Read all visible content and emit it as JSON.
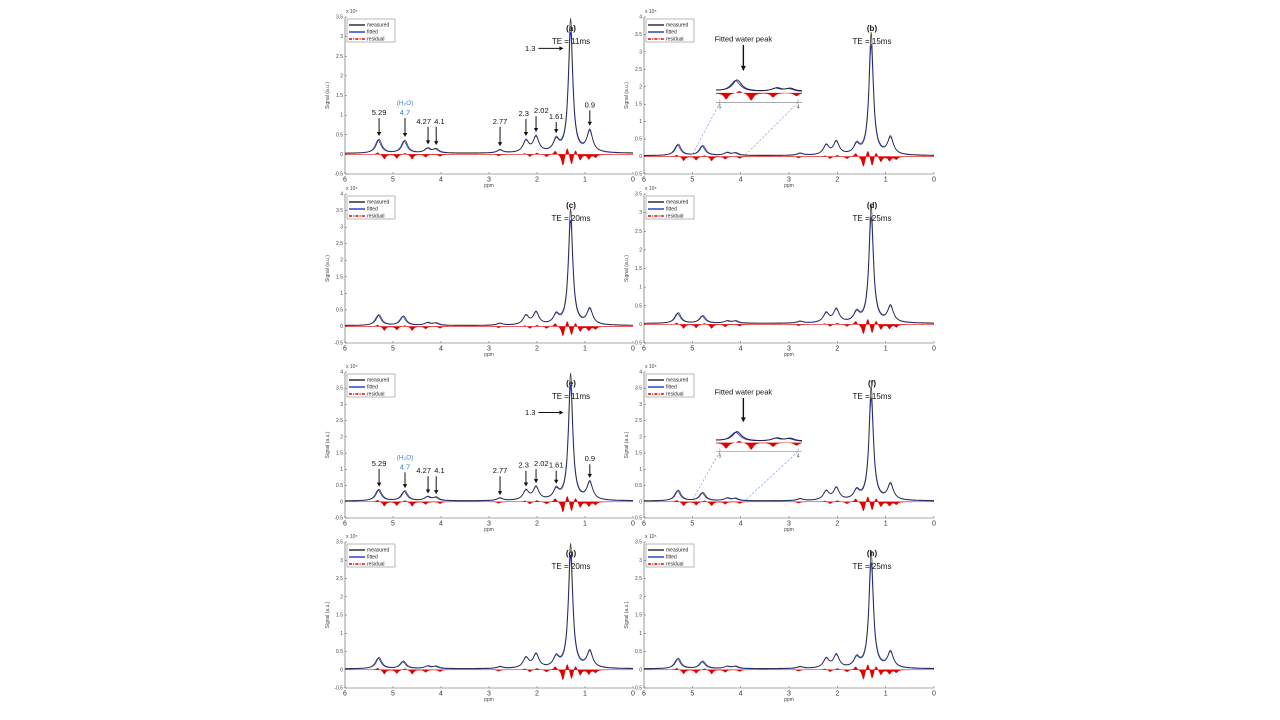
{
  "chart_data": {
    "type": "line",
    "xlabel": "ppm",
    "ylabel": "Signal (a.u.)",
    "y_exponent": "x 10⁵",
    "xlim": [
      6,
      0
    ],
    "x_ticks": [
      "6",
      "5",
      "4",
      "3",
      "2",
      "1",
      "0"
    ],
    "legend": {
      "placement": "top-left",
      "entries": [
        "measured",
        "fitted",
        "residual"
      ]
    },
    "colors": {
      "measured": "#222222",
      "fitted": "#2233cc",
      "residual": "#e00000",
      "annotation_water": "#3a7fd5",
      "inset_guide": "#7799dd"
    },
    "residual_peaks": [
      [
        5.32,
        0.05
      ],
      [
        5.18,
        -0.12
      ],
      [
        4.92,
        -0.1
      ],
      [
        4.75,
        0.04
      ],
      [
        4.6,
        -0.12
      ],
      [
        4.32,
        -0.07
      ],
      [
        4.02,
        -0.05
      ],
      [
        2.8,
        -0.04
      ],
      [
        2.25,
        0.03
      ],
      [
        2.15,
        -0.06
      ],
      [
        2.0,
        0.04
      ],
      [
        1.8,
        -0.06
      ],
      [
        1.62,
        0.1
      ],
      [
        1.46,
        -0.3
      ],
      [
        1.37,
        0.22
      ],
      [
        1.28,
        -0.28
      ],
      [
        1.2,
        0.15
      ],
      [
        1.1,
        -0.15
      ],
      [
        0.92,
        -0.12
      ],
      [
        0.78,
        -0.08
      ]
    ],
    "panels": [
      {
        "id": "(a)",
        "te": "TE = 11ms",
        "ylim": [
          -0.5,
          3.5
        ],
        "y_ticks": [
          "-0.5",
          "0",
          "0.5",
          "1",
          "1.5",
          "2",
          "2.5",
          "3",
          "3.5"
        ],
        "peaks": [
          [
            5.29,
            0.35
          ],
          [
            4.75,
            0.32
          ],
          [
            4.27,
            0.12
          ],
          [
            4.1,
            0.1
          ],
          [
            2.77,
            0.08
          ],
          [
            2.23,
            0.3
          ],
          [
            2.02,
            0.4
          ],
          [
            1.6,
            0.3
          ],
          [
            1.3,
            3.4
          ],
          [
            0.9,
            0.55
          ]
        ],
        "annotations": [
          {
            "text": "5.29",
            "ppm": 5.29,
            "label_y": 1.0
          },
          {
            "text": "4.7",
            "ppm": 4.75,
            "label_y": 1.0,
            "sup": "(H₂O)",
            "blue": true
          },
          {
            "text": "4.27",
            "ppm": 4.27,
            "label_y": 0.78
          },
          {
            "text": "4.1",
            "ppm": 4.1,
            "label_y": 0.78
          },
          {
            "text": "2.77",
            "ppm": 2.77,
            "label_y": 0.78
          },
          {
            "text": "2.3",
            "ppm": 2.23,
            "label_y": 0.98
          },
          {
            "text": "2.02",
            "ppm": 2.02,
            "label_y": 1.05
          },
          {
            "text": "1.61",
            "ppm": 1.6,
            "label_y": 0.9
          },
          {
            "text": "0.9",
            "ppm": 0.9,
            "label_y": 1.2
          }
        ],
        "arrow_label": {
          "text": "1.3",
          "ppm": 1.45,
          "y": 2.7
        }
      },
      {
        "id": "(b)",
        "te": "TE = 15ms",
        "ylim": [
          -0.5,
          4
        ],
        "y_ticks": [
          "-0.5",
          "0",
          "0.5",
          "1",
          "1.5",
          "2",
          "2.5",
          "3",
          "3.5",
          "4"
        ],
        "peaks": [
          [
            5.29,
            0.32
          ],
          [
            4.78,
            0.28
          ],
          [
            4.27,
            0.08
          ],
          [
            4.1,
            0.07
          ],
          [
            2.77,
            0.06
          ],
          [
            2.23,
            0.28
          ],
          [
            2.02,
            0.38
          ],
          [
            1.6,
            0.28
          ],
          [
            1.3,
            3.5
          ],
          [
            0.9,
            0.5
          ]
        ],
        "inset": {
          "title": "Fitted water peak",
          "range": [
            5,
            4
          ]
        }
      },
      {
        "id": "(c)",
        "te": "TE = 20ms",
        "ylim": [
          -0.5,
          4
        ],
        "y_ticks": [
          "-0.5",
          "0",
          "0.5",
          "1",
          "1.5",
          "2",
          "2.5",
          "3",
          "3.5",
          "4"
        ],
        "peaks": [
          [
            5.29,
            0.32
          ],
          [
            4.78,
            0.28
          ],
          [
            4.27,
            0.08
          ],
          [
            4.1,
            0.07
          ],
          [
            2.77,
            0.06
          ],
          [
            2.23,
            0.28
          ],
          [
            2.02,
            0.38
          ],
          [
            1.6,
            0.28
          ],
          [
            1.3,
            3.5
          ],
          [
            0.9,
            0.48
          ]
        ]
      },
      {
        "id": "(d)",
        "te": "TE = 25ms",
        "ylim": [
          -0.5,
          3.5
        ],
        "y_ticks": [
          "-0.5",
          "0",
          "0.5",
          "1",
          "1.5",
          "2",
          "2.5",
          "3",
          "3.5"
        ],
        "peaks": [
          [
            5.29,
            0.28
          ],
          [
            4.78,
            0.2
          ],
          [
            4.27,
            0.06
          ],
          [
            4.1,
            0.06
          ],
          [
            2.77,
            0.05
          ],
          [
            2.23,
            0.26
          ],
          [
            2.02,
            0.36
          ],
          [
            1.6,
            0.26
          ],
          [
            1.3,
            3.15
          ],
          [
            0.9,
            0.44
          ]
        ]
      },
      {
        "id": "(e)",
        "te": "TE = 11ms",
        "ylim": [
          -0.5,
          4
        ],
        "y_ticks": [
          "-0.5",
          "0",
          "0.5",
          "1",
          "1.5",
          "2",
          "2.5",
          "3",
          "3.5",
          "4"
        ],
        "peaks": [
          [
            5.29,
            0.35
          ],
          [
            4.75,
            0.3
          ],
          [
            4.27,
            0.12
          ],
          [
            4.1,
            0.1
          ],
          [
            2.77,
            0.08
          ],
          [
            2.23,
            0.3
          ],
          [
            2.02,
            0.4
          ],
          [
            1.6,
            0.3
          ],
          [
            1.3,
            3.9
          ],
          [
            0.9,
            0.55
          ]
        ],
        "annotations": [
          {
            "text": "5.29",
            "ppm": 5.29,
            "label_y": 1.1
          },
          {
            "text": "4.7",
            "ppm": 4.75,
            "label_y": 1.0,
            "sup": "(H₂O)",
            "blue": true
          },
          {
            "text": "4.27",
            "ppm": 4.27,
            "label_y": 0.88
          },
          {
            "text": "4.1",
            "ppm": 4.1,
            "label_y": 0.88
          },
          {
            "text": "2.77",
            "ppm": 2.77,
            "label_y": 0.88
          },
          {
            "text": "2.3",
            "ppm": 2.23,
            "label_y": 1.05
          },
          {
            "text": "2.02",
            "ppm": 2.02,
            "label_y": 1.1
          },
          {
            "text": "1.61",
            "ppm": 1.6,
            "label_y": 1.05
          },
          {
            "text": "0.9",
            "ppm": 0.9,
            "label_y": 1.25
          }
        ],
        "arrow_label": {
          "text": "1.3",
          "ppm": 1.45,
          "y": 2.75
        }
      },
      {
        "id": "(f)",
        "te": "TE = 15ms",
        "ylim": [
          -0.5,
          4
        ],
        "y_ticks": [
          "-0.5",
          "0",
          "0.5",
          "1",
          "1.5",
          "2",
          "2.5",
          "3",
          "3.5",
          "4"
        ],
        "peaks": [
          [
            5.29,
            0.32
          ],
          [
            4.78,
            0.25
          ],
          [
            4.27,
            0.08
          ],
          [
            4.1,
            0.07
          ],
          [
            2.77,
            0.06
          ],
          [
            2.23,
            0.28
          ],
          [
            2.02,
            0.38
          ],
          [
            1.6,
            0.28
          ],
          [
            1.3,
            3.5
          ],
          [
            0.9,
            0.5
          ]
        ],
        "inset": {
          "title": "Fitted water peak",
          "range": [
            5,
            4
          ]
        }
      },
      {
        "id": "(g)",
        "te": "TE = 20ms",
        "ylim": [
          -0.5,
          3.5
        ],
        "y_ticks": [
          "-0.5",
          "0",
          "0.5",
          "1",
          "1.5",
          "2",
          "2.5",
          "3",
          "3.5"
        ],
        "peaks": [
          [
            5.29,
            0.3
          ],
          [
            4.78,
            0.2
          ],
          [
            4.27,
            0.07
          ],
          [
            4.1,
            0.06
          ],
          [
            2.77,
            0.05
          ],
          [
            2.23,
            0.28
          ],
          [
            2.02,
            0.38
          ],
          [
            1.6,
            0.28
          ],
          [
            1.3,
            3.4
          ],
          [
            0.9,
            0.46
          ]
        ]
      },
      {
        "id": "(h)",
        "te": "TE = 25ms",
        "ylim": [
          -0.5,
          3.5
        ],
        "y_ticks": [
          "-0.5",
          "0",
          "0.5",
          "1",
          "1.5",
          "2",
          "2.5",
          "3",
          "3.5"
        ],
        "peaks": [
          [
            5.29,
            0.28
          ],
          [
            4.78,
            0.2
          ],
          [
            4.27,
            0.06
          ],
          [
            4.1,
            0.06
          ],
          [
            2.77,
            0.05
          ],
          [
            2.23,
            0.26
          ],
          [
            2.02,
            0.36
          ],
          [
            1.6,
            0.26
          ],
          [
            1.3,
            3.2
          ],
          [
            0.9,
            0.44
          ]
        ]
      }
    ]
  }
}
